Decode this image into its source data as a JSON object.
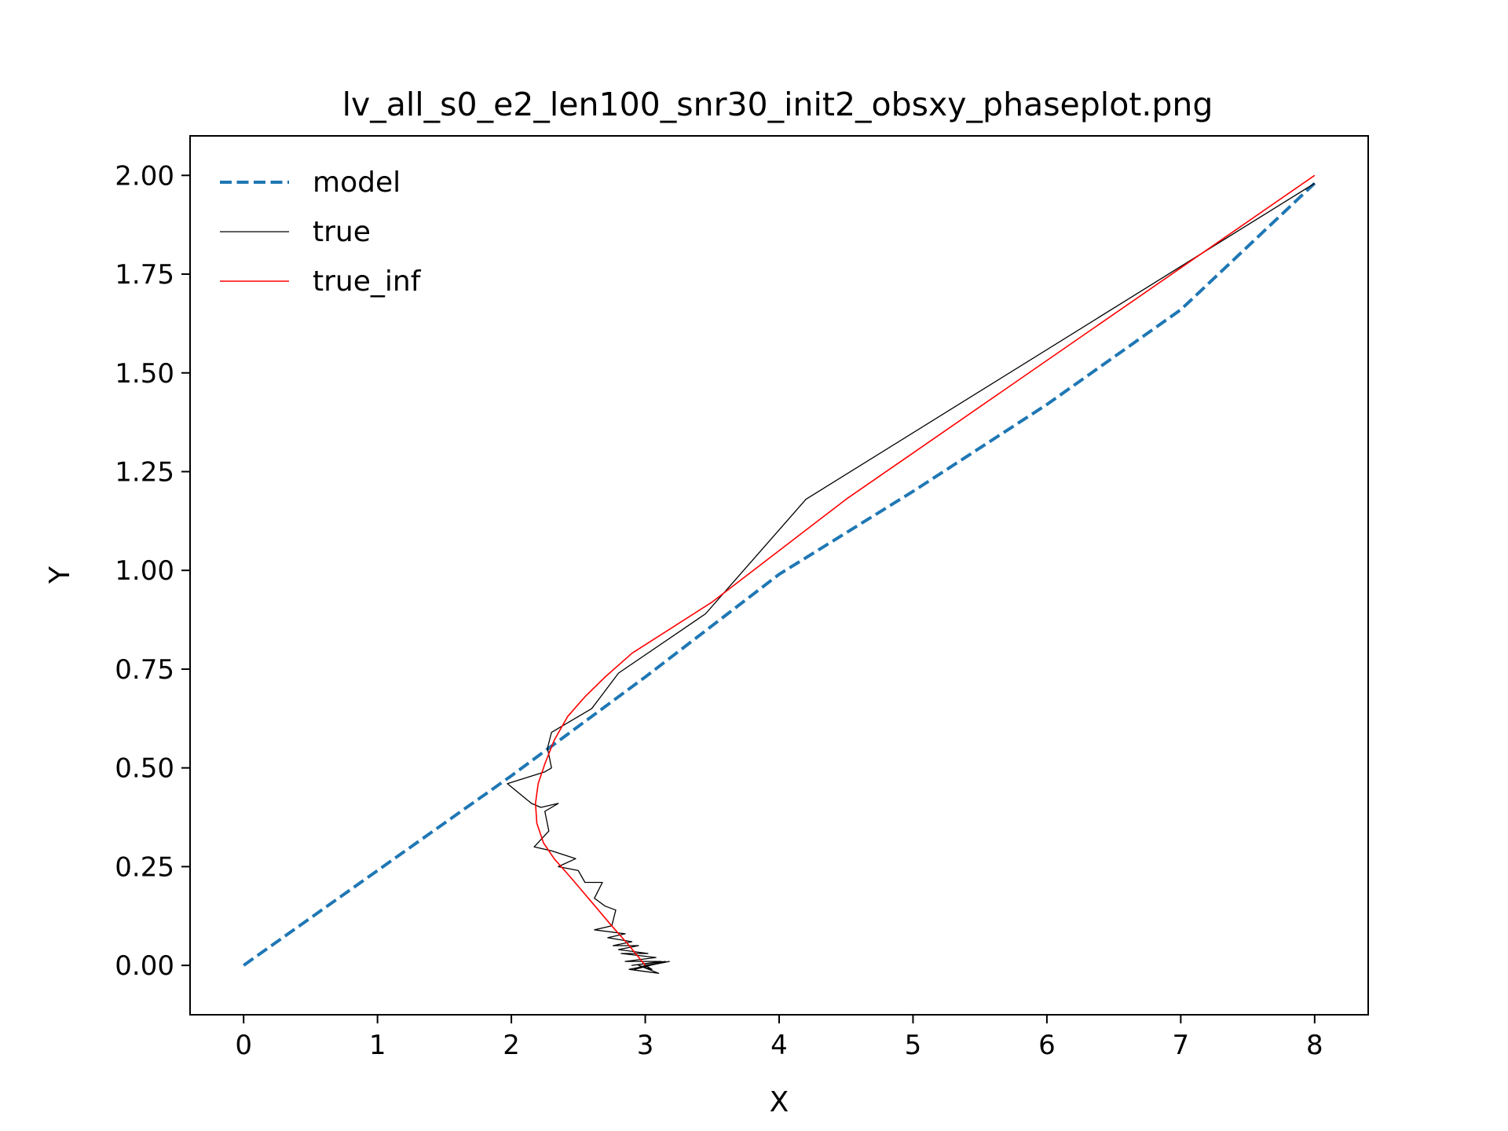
{
  "chart_data": {
    "type": "line",
    "title": "lv_all_s0_e2_len100_snr30_init2_obsxy_phaseplot.png",
    "xlabel": "X",
    "ylabel": "Y",
    "xlim": [
      -0.4,
      8.4
    ],
    "ylim": [
      -0.125,
      2.1
    ],
    "xticks": [
      0,
      1,
      2,
      3,
      4,
      5,
      6,
      7,
      8
    ],
    "yticks": [
      0.0,
      0.25,
      0.5,
      0.75,
      1.0,
      1.25,
      1.5,
      1.75,
      2.0
    ],
    "xtick_labels": [
      "0",
      "1",
      "2",
      "3",
      "4",
      "5",
      "6",
      "7",
      "8"
    ],
    "ytick_labels": [
      "0.00",
      "0.25",
      "0.50",
      "0.75",
      "1.00",
      "1.25",
      "1.50",
      "1.75",
      "2.00"
    ],
    "grid": false,
    "legend_position": "top-left",
    "series": [
      {
        "name": "model",
        "color": "#1f77b4",
        "style": "dashed",
        "x": [
          0.0,
          1.0,
          2.0,
          3.0,
          4.0,
          5.0,
          6.0,
          7.0,
          8.0
        ],
        "y": [
          0.0,
          0.24,
          0.48,
          0.73,
          0.99,
          1.2,
          1.42,
          1.66,
          1.98
        ]
      },
      {
        "name": "true",
        "color": "#000000",
        "style": "solid",
        "x": [
          8.0,
          4.2,
          3.45,
          2.8,
          2.6,
          2.3,
          2.27,
          2.3,
          2.25,
          1.97,
          2.15,
          2.22,
          2.35,
          2.25,
          2.28,
          2.17,
          2.3,
          2.48,
          2.35,
          2.5,
          2.55,
          2.68,
          2.62,
          2.7,
          2.78,
          2.75,
          2.62,
          2.85,
          2.72,
          2.9,
          2.76,
          2.95,
          2.8,
          3.02,
          2.82,
          3.08,
          2.85,
          3.12,
          2.9,
          3.15,
          2.92,
          3.0,
          3.18,
          2.88,
          3.1,
          2.95,
          3.05,
          3.0
        ],
        "y": [
          1.98,
          1.18,
          0.89,
          0.74,
          0.65,
          0.59,
          0.55,
          0.5,
          0.49,
          0.46,
          0.41,
          0.4,
          0.41,
          0.39,
          0.34,
          0.3,
          0.29,
          0.27,
          0.25,
          0.24,
          0.21,
          0.21,
          0.17,
          0.15,
          0.14,
          0.1,
          0.09,
          0.08,
          0.07,
          0.06,
          0.05,
          0.05,
          0.04,
          0.03,
          0.03,
          0.02,
          0.01,
          0.01,
          0.0,
          0.01,
          -0.01,
          0.0,
          0.01,
          -0.01,
          -0.02,
          0.0,
          -0.01,
          0.0
        ]
      },
      {
        "name": "true_inf",
        "color": "#ff0000",
        "style": "solid",
        "x": [
          8.0,
          4.5,
          3.5,
          2.9,
          2.7,
          2.55,
          2.42,
          2.32,
          2.25,
          2.2,
          2.18,
          2.19,
          2.24,
          2.32,
          2.45,
          2.6,
          2.75,
          2.88,
          3.0
        ],
        "y": [
          2.0,
          1.18,
          0.92,
          0.79,
          0.73,
          0.68,
          0.63,
          0.57,
          0.51,
          0.46,
          0.41,
          0.36,
          0.31,
          0.27,
          0.22,
          0.16,
          0.1,
          0.05,
          0.0
        ]
      }
    ]
  }
}
